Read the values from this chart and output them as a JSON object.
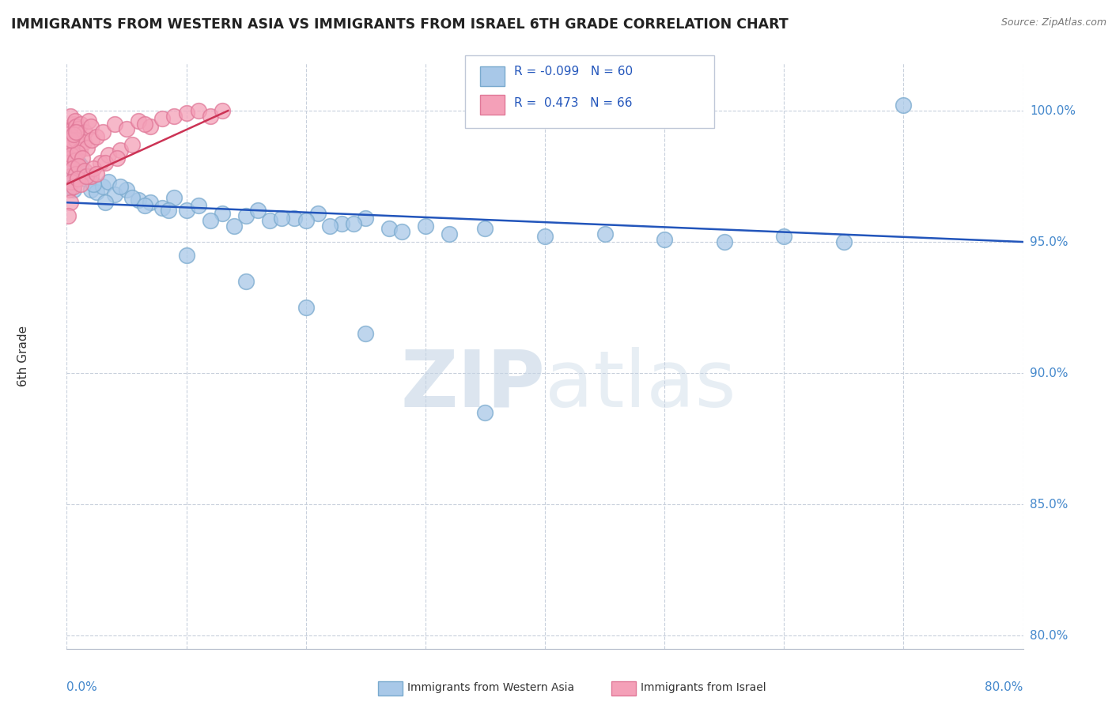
{
  "title": "IMMIGRANTS FROM WESTERN ASIA VS IMMIGRANTS FROM ISRAEL 6TH GRADE CORRELATION CHART",
  "source": "Source: ZipAtlas.com",
  "ylabel": "6th Grade",
  "y_ticks": [
    80.0,
    85.0,
    90.0,
    95.0,
    100.0
  ],
  "x_min": 0.0,
  "x_max": 80.0,
  "y_min": 79.5,
  "y_max": 101.8,
  "blue_R": -0.099,
  "blue_N": 60,
  "pink_R": 0.473,
  "pink_N": 66,
  "blue_color": "#a8c8e8",
  "pink_color": "#f4a0b8",
  "blue_edge_color": "#7aaace",
  "pink_edge_color": "#e07898",
  "blue_line_color": "#2255bb",
  "pink_line_color": "#cc3355",
  "watermark_color": "#ccd8e8",
  "blue_dots": [
    [
      0.5,
      97.8
    ],
    [
      0.8,
      98.2
    ],
    [
      1.0,
      98.0
    ],
    [
      0.3,
      97.5
    ],
    [
      1.2,
      97.9
    ],
    [
      0.7,
      98.3
    ],
    [
      0.4,
      97.2
    ],
    [
      0.9,
      97.6
    ],
    [
      1.5,
      97.4
    ],
    [
      2.0,
      97.0
    ],
    [
      2.5,
      96.9
    ],
    [
      3.0,
      97.1
    ],
    [
      3.5,
      97.3
    ],
    [
      4.0,
      96.8
    ],
    [
      5.0,
      97.0
    ],
    [
      6.0,
      96.6
    ],
    [
      7.0,
      96.5
    ],
    [
      8.0,
      96.3
    ],
    [
      9.0,
      96.7
    ],
    [
      10.0,
      96.2
    ],
    [
      11.0,
      96.4
    ],
    [
      13.0,
      96.1
    ],
    [
      15.0,
      96.0
    ],
    [
      17.0,
      95.8
    ],
    [
      19.0,
      95.9
    ],
    [
      21.0,
      96.1
    ],
    [
      23.0,
      95.7
    ],
    [
      25.0,
      95.9
    ],
    [
      27.0,
      95.5
    ],
    [
      30.0,
      95.6
    ],
    [
      0.6,
      97.0
    ],
    [
      1.8,
      97.5
    ],
    [
      2.2,
      97.2
    ],
    [
      3.2,
      96.5
    ],
    [
      4.5,
      97.1
    ],
    [
      5.5,
      96.7
    ],
    [
      6.5,
      96.4
    ],
    [
      8.5,
      96.2
    ],
    [
      12.0,
      95.8
    ],
    [
      14.0,
      95.6
    ],
    [
      16.0,
      96.2
    ],
    [
      18.0,
      95.9
    ],
    [
      20.0,
      95.8
    ],
    [
      22.0,
      95.6
    ],
    [
      24.0,
      95.7
    ],
    [
      28.0,
      95.4
    ],
    [
      32.0,
      95.3
    ],
    [
      35.0,
      95.5
    ],
    [
      40.0,
      95.2
    ],
    [
      45.0,
      95.3
    ],
    [
      50.0,
      95.1
    ],
    [
      55.0,
      95.0
    ],
    [
      60.0,
      95.2
    ],
    [
      65.0,
      95.0
    ],
    [
      70.0,
      100.2
    ],
    [
      10.0,
      94.5
    ],
    [
      15.0,
      93.5
    ],
    [
      20.0,
      92.5
    ],
    [
      25.0,
      91.5
    ],
    [
      35.0,
      88.5
    ]
  ],
  "pink_dots": [
    [
      0.2,
      99.0
    ],
    [
      0.4,
      99.2
    ],
    [
      0.6,
      99.5
    ],
    [
      0.3,
      99.8
    ],
    [
      0.5,
      99.3
    ],
    [
      0.7,
      99.6
    ],
    [
      0.1,
      99.1
    ],
    [
      0.8,
      99.4
    ],
    [
      0.9,
      99.0
    ],
    [
      1.0,
      99.3
    ],
    [
      1.2,
      99.5
    ],
    [
      1.5,
      99.2
    ],
    [
      1.8,
      99.6
    ],
    [
      2.0,
      99.4
    ],
    [
      0.4,
      98.8
    ],
    [
      0.6,
      98.5
    ],
    [
      0.3,
      98.2
    ],
    [
      0.5,
      98.7
    ],
    [
      0.8,
      98.9
    ],
    [
      1.1,
      98.5
    ],
    [
      1.4,
      98.8
    ],
    [
      1.7,
      98.6
    ],
    [
      2.1,
      98.9
    ],
    [
      2.5,
      99.0
    ],
    [
      0.2,
      98.0
    ],
    [
      0.4,
      98.3
    ],
    [
      0.7,
      98.1
    ],
    [
      0.9,
      98.4
    ],
    [
      1.3,
      98.2
    ],
    [
      3.0,
      99.2
    ],
    [
      4.0,
      99.5
    ],
    [
      5.0,
      99.3
    ],
    [
      6.0,
      99.6
    ],
    [
      7.0,
      99.4
    ],
    [
      8.0,
      99.7
    ],
    [
      9.0,
      99.8
    ],
    [
      10.0,
      99.9
    ],
    [
      11.0,
      100.0
    ],
    [
      12.0,
      99.8
    ],
    [
      0.3,
      97.5
    ],
    [
      0.5,
      97.8
    ],
    [
      0.8,
      97.6
    ],
    [
      1.0,
      97.9
    ],
    [
      1.5,
      97.7
    ],
    [
      2.0,
      97.5
    ],
    [
      2.8,
      98.0
    ],
    [
      3.5,
      98.3
    ],
    [
      4.5,
      98.5
    ],
    [
      5.5,
      98.7
    ],
    [
      0.2,
      97.0
    ],
    [
      0.4,
      97.3
    ],
    [
      0.6,
      97.1
    ],
    [
      0.9,
      97.4
    ],
    [
      1.2,
      97.2
    ],
    [
      1.6,
      97.5
    ],
    [
      2.2,
      97.8
    ],
    [
      3.2,
      98.0
    ],
    [
      4.2,
      98.2
    ],
    [
      0.3,
      96.5
    ],
    [
      0.1,
      96.0
    ],
    [
      2.5,
      97.6
    ],
    [
      0.4,
      98.9
    ],
    [
      0.6,
      99.1
    ],
    [
      0.8,
      99.2
    ],
    [
      6.5,
      99.5
    ],
    [
      13.0,
      100.0
    ]
  ],
  "blue_trend_x": [
    0.0,
    80.0
  ],
  "blue_trend_y": [
    96.5,
    95.0
  ],
  "pink_trend_x": [
    0.0,
    13.5
  ],
  "pink_trend_y": [
    97.2,
    100.0
  ]
}
